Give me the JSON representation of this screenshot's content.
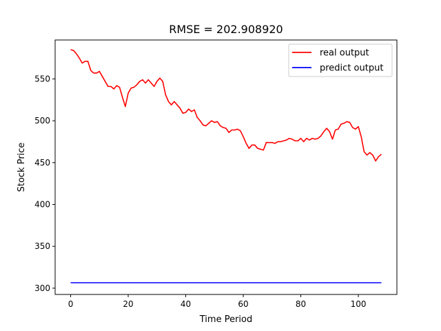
{
  "chart_data": {
    "type": "line",
    "title": "RMSE = 202.908920",
    "xlabel": "Time Period",
    "ylabel": "Stock Price",
    "xlim": [
      -5.4,
      113.4
    ],
    "ylim": [
      292.5,
      596.5
    ],
    "xticks": [
      0,
      20,
      40,
      60,
      80,
      100
    ],
    "yticks": [
      300,
      350,
      400,
      450,
      500,
      550
    ],
    "grid": false,
    "legend_position": "top-right",
    "series": [
      {
        "name": "real output",
        "color": "#ff0000",
        "x": [
          0,
          1,
          2,
          3,
          4,
          5,
          6,
          7,
          8,
          9,
          10,
          11,
          12,
          13,
          14,
          15,
          16,
          17,
          18,
          19,
          20,
          21,
          22,
          23,
          24,
          25,
          26,
          27,
          28,
          29,
          30,
          31,
          32,
          33,
          34,
          35,
          36,
          37,
          38,
          39,
          40,
          41,
          42,
          43,
          44,
          45,
          46,
          47,
          48,
          49,
          50,
          51,
          52,
          53,
          54,
          55,
          56,
          57,
          58,
          59,
          60,
          61,
          62,
          63,
          64,
          65,
          66,
          67,
          68,
          69,
          70,
          71,
          72,
          73,
          74,
          75,
          76,
          77,
          78,
          79,
          80,
          81,
          82,
          83,
          84,
          85,
          86,
          87,
          88,
          89,
          90,
          91,
          92,
          93,
          94,
          95,
          96,
          97,
          98,
          99,
          100,
          101,
          102,
          103,
          104,
          105,
          106,
          107,
          108
        ],
        "values": [
          585,
          584,
          580,
          575,
          569,
          571,
          571,
          560,
          557,
          557,
          559,
          553,
          547,
          541,
          541,
          538,
          542,
          540,
          528,
          517,
          533,
          539,
          540,
          543,
          547,
          549,
          545,
          549,
          545,
          541,
          547,
          551,
          547,
          531,
          523,
          519,
          523,
          519,
          515,
          509,
          510,
          514,
          511,
          513,
          504,
          500,
          495,
          494,
          497,
          500,
          498,
          499,
          494,
          492,
          491,
          486,
          489,
          489,
          490,
          488,
          481,
          473,
          467,
          471,
          471,
          467,
          466,
          465,
          474,
          474,
          474,
          473,
          475,
          475,
          476,
          477,
          479,
          478,
          476,
          476,
          479,
          475,
          479,
          477,
          479,
          478,
          479,
          482,
          487,
          491,
          487,
          478,
          489,
          490,
          496,
          497,
          499,
          498,
          492,
          490,
          493,
          481,
          463,
          459,
          462,
          459,
          452,
          457,
          460
        ]
      },
      {
        "name": "predict output",
        "color": "#0000ff",
        "x": [
          0,
          108
        ],
        "values": [
          306.5,
          306.5
        ]
      }
    ]
  }
}
